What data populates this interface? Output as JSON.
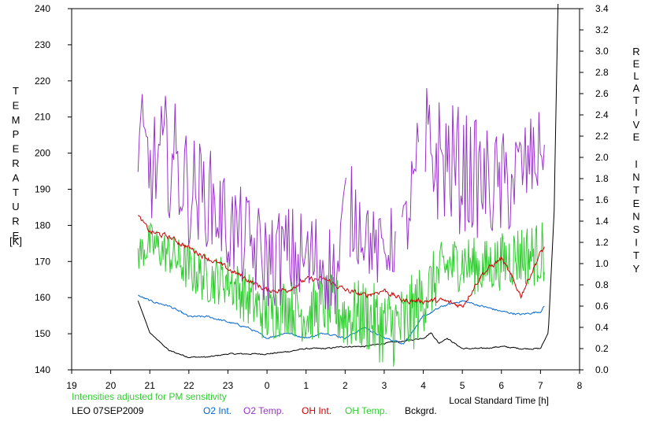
{
  "chart_data": {
    "type": "line",
    "x_ticks": [
      "19",
      "20",
      "21",
      "22",
      "23",
      "0",
      "1",
      "2",
      "3",
      "4",
      "5",
      "6",
      "7",
      "8"
    ],
    "xlim": [
      19,
      32
    ],
    "left_axis": {
      "label_letters": [
        "T",
        "E",
        "M",
        "P",
        "E",
        "R",
        "A",
        "T",
        "U",
        "R",
        "E"
      ],
      "unit": "[K]",
      "ylim": [
        140,
        240
      ],
      "ticks": [
        "140",
        "150",
        "160",
        "170",
        "180",
        "190",
        "200",
        "210",
        "220",
        "230",
        "240"
      ]
    },
    "right_axis": {
      "label_letters_1": [
        "R",
        "E",
        "L",
        "A",
        "T",
        "I",
        "V",
        "E"
      ],
      "label_letters_2": [
        "I",
        "N",
        "T",
        "E",
        "N",
        "S",
        "I",
        "T",
        "Y"
      ],
      "ylim": [
        0,
        3.4
      ],
      "ticks": [
        "0.0",
        "0.2",
        "0.4",
        "0.6",
        "0.8",
        "1.0",
        "1.2",
        "1.4",
        "1.6",
        "1.8",
        "2.0",
        "2.2",
        "2.4",
        "2.6",
        "2.8",
        "3.0",
        "3.2",
        "3.4"
      ]
    },
    "xlabel": "Local Standard Time [h]",
    "note": "Intensities adjusted for PM sensitivity",
    "station": "LEO 07SEP2009",
    "series": [
      {
        "name": "O2 Int.",
        "color": "#0066cc",
        "axis": "right",
        "x": [
          20.7,
          21.0,
          21.5,
          22.0,
          22.5,
          23.0,
          23.5,
          24.0,
          24.5,
          25.0,
          25.5,
          26.0,
          26.5,
          27.0,
          27.5,
          28.0,
          28.5,
          29.0,
          29.5,
          30.0,
          30.5,
          31.0,
          31.1
        ],
        "y": [
          0.7,
          0.65,
          0.6,
          0.5,
          0.5,
          0.45,
          0.4,
          0.3,
          0.35,
          0.3,
          0.35,
          0.3,
          0.4,
          0.3,
          0.25,
          0.5,
          0.6,
          0.65,
          0.6,
          0.55,
          0.52,
          0.55,
          0.6
        ]
      },
      {
        "name": "O2 Temp.",
        "color": "#9933cc",
        "axis": "left",
        "x": [
          20.7,
          21.0,
          21.5,
          22.0,
          22.5,
          23.0,
          23.5,
          24.0,
          24.5,
          25.0,
          25.5,
          25.8,
          26.0,
          26.5,
          26.8,
          27.5,
          28.0,
          28.5,
          29.0,
          29.5,
          30.0,
          30.5,
          31.0,
          31.1
        ],
        "y": [
          205,
          195,
          200,
          190,
          188,
          180,
          175,
          170,
          172,
          170,
          170,
          165,
          185,
          180,
          172,
          178,
          200,
          198,
          195,
          192,
          190,
          195,
          200,
          205
        ],
        "amp": [
          15,
          15,
          18,
          16,
          14,
          14,
          14,
          14,
          14,
          15,
          14,
          12,
          14,
          12,
          10,
          10,
          20,
          18,
          18,
          16,
          16,
          14,
          12,
          10
        ],
        "gaps": [
          [
            26.05,
            26.1
          ],
          [
            27.3,
            27.45
          ],
          [
            27.9,
            28.05
          ]
        ]
      },
      {
        "name": "OH Int.",
        "color": "#cc0000",
        "axis": "right",
        "x": [
          20.7,
          21.0,
          21.5,
          22.0,
          22.5,
          23.0,
          23.5,
          24.0,
          24.5,
          25.0,
          25.5,
          26.0,
          26.5,
          27.0,
          27.5,
          28.0,
          28.5,
          29.0,
          29.5,
          30.0,
          30.5,
          31.0,
          31.1
        ],
        "y": [
          1.45,
          1.3,
          1.25,
          1.15,
          1.05,
          0.95,
          0.85,
          0.75,
          0.75,
          0.85,
          0.85,
          0.75,
          0.7,
          0.75,
          0.65,
          0.65,
          0.65,
          0.6,
          0.9,
          1.05,
          0.7,
          1.1,
          1.15
        ],
        "amp": [
          0.03,
          0.04,
          0.04,
          0.04,
          0.04,
          0.04,
          0.04,
          0.04,
          0.04,
          0.04,
          0.04,
          0.04,
          0.04,
          0.04,
          0.04,
          0.04,
          0.04,
          0.04,
          0.04,
          0.04,
          0.04,
          0.04,
          0.03
        ]
      },
      {
        "name": "OH Temp.",
        "color": "#33cc33",
        "axis": "left",
        "x": [
          20.7,
          21.0,
          21.5,
          22.0,
          22.5,
          23.0,
          23.5,
          24.0,
          24.5,
          25.0,
          25.5,
          26.0,
          26.5,
          27.0,
          27.5,
          28.0,
          28.5,
          29.0,
          29.5,
          30.0,
          30.5,
          31.0,
          31.1
        ],
        "y": [
          172,
          175,
          172,
          168,
          165,
          165,
          160,
          155,
          158,
          155,
          158,
          155,
          155,
          152,
          152,
          160,
          168,
          170,
          168,
          170,
          172,
          172,
          173
        ],
        "amp": [
          5,
          6,
          6,
          7,
          7,
          7,
          8,
          8,
          8,
          8,
          9,
          10,
          10,
          11,
          12,
          10,
          8,
          8,
          8,
          8,
          9,
          9,
          9
        ]
      },
      {
        "name": "Bckgrd.",
        "color": "#000000",
        "axis": "right",
        "x": [
          20.7,
          21.0,
          21.5,
          22.0,
          22.5,
          23.0,
          23.5,
          24.0,
          24.5,
          25.0,
          25.5,
          26.0,
          26.5,
          27.0,
          27.5,
          28.0,
          28.2,
          28.4,
          28.6,
          29.0,
          29.5,
          30.0,
          30.5,
          31.0,
          31.2,
          31.35,
          31.45
        ],
        "y": [
          0.65,
          0.35,
          0.18,
          0.12,
          0.12,
          0.15,
          0.15,
          0.15,
          0.17,
          0.2,
          0.2,
          0.22,
          0.22,
          0.25,
          0.27,
          0.3,
          0.35,
          0.25,
          0.3,
          0.2,
          0.2,
          0.22,
          0.2,
          0.2,
          0.35,
          1.5,
          3.5
        ],
        "amp": [
          0,
          0,
          0.01,
          0.01,
          0.01,
          0.01,
          0.01,
          0.01,
          0.01,
          0.01,
          0.01,
          0.01,
          0.01,
          0.01,
          0.01,
          0.01,
          0.01,
          0.01,
          0.01,
          0.01,
          0.01,
          0.01,
          0.01,
          0.01,
          0,
          0,
          0
        ]
      }
    ]
  }
}
